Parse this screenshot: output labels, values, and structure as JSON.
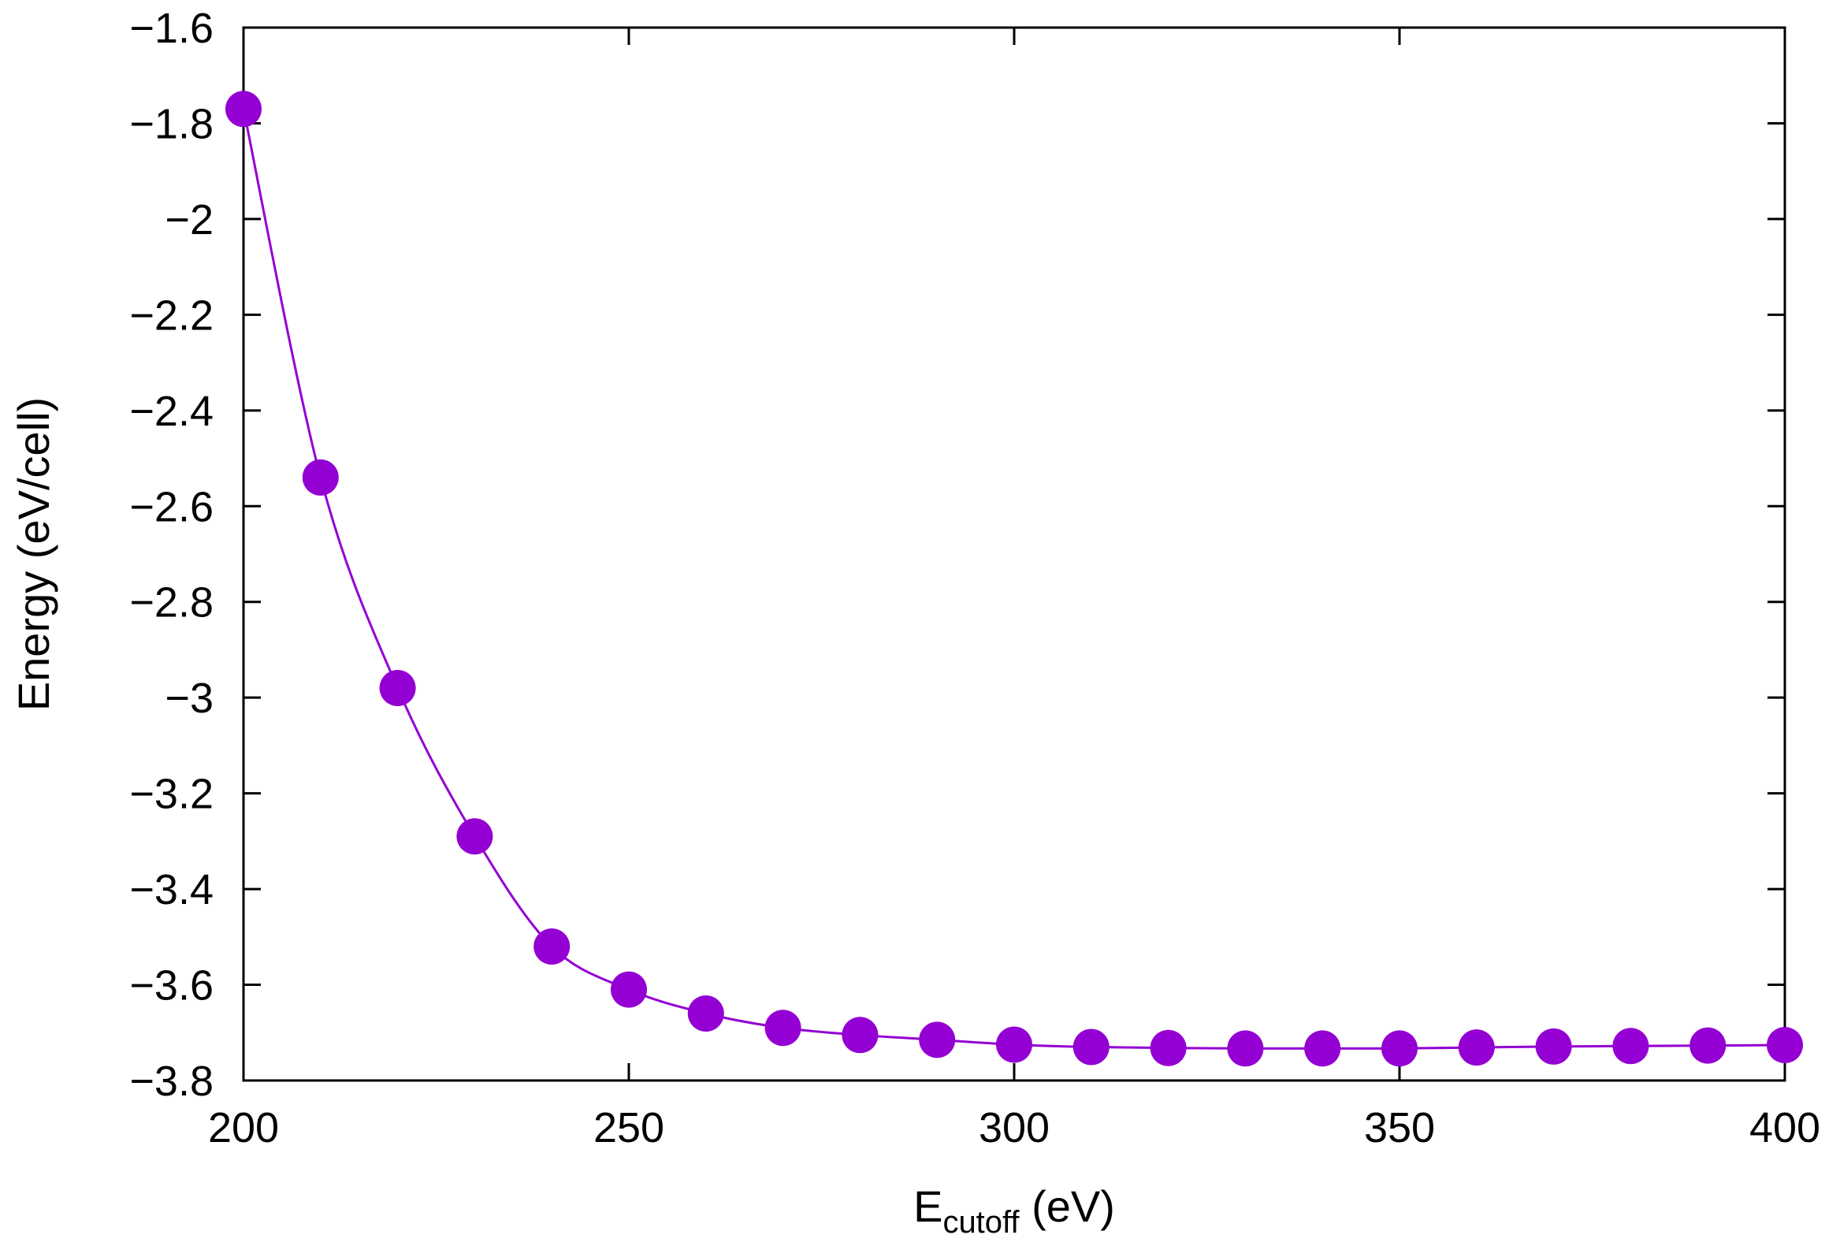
{
  "chart_data": {
    "type": "line",
    "title": "",
    "xlabel": {
      "main": "E",
      "sub": "cutoff",
      "suffix": " (eV)"
    },
    "ylabel": "Energy (eV/cell)",
    "xlim": [
      200,
      400
    ],
    "ylim": [
      -3.8,
      -1.6
    ],
    "x_ticks": [
      200,
      250,
      300,
      350,
      400
    ],
    "y_ticks": [
      -1.6,
      -1.8,
      -2.0,
      -2.2,
      -2.4,
      -2.6,
      -2.8,
      -3.0,
      -3.2,
      -3.4,
      -3.6,
      -3.8
    ],
    "x_tick_labels": [
      "200",
      "250",
      "300",
      "350",
      "400"
    ],
    "y_tick_labels": [
      "−1.6",
      "−1.8",
      "−2",
      "−2.2",
      "−2.4",
      "−2.6",
      "−2.8",
      "−3",
      "−3.2",
      "−3.4",
      "−3.6",
      "−3.8"
    ],
    "grid": false,
    "series": [
      {
        "name": "Energy",
        "color": "#9400d3",
        "marker": "circle",
        "x": [
          200,
          210,
          220,
          230,
          240,
          250,
          260,
          270,
          280,
          290,
          300,
          310,
          320,
          330,
          340,
          350,
          360,
          370,
          380,
          390,
          400
        ],
        "y": [
          -1.77,
          -2.54,
          -2.98,
          -3.29,
          -3.52,
          -3.61,
          -3.66,
          -3.69,
          -3.705,
          -3.715,
          -3.725,
          -3.73,
          -3.732,
          -3.733,
          -3.733,
          -3.733,
          -3.731,
          -3.729,
          -3.728,
          -3.727,
          -3.726
        ]
      }
    ]
  }
}
